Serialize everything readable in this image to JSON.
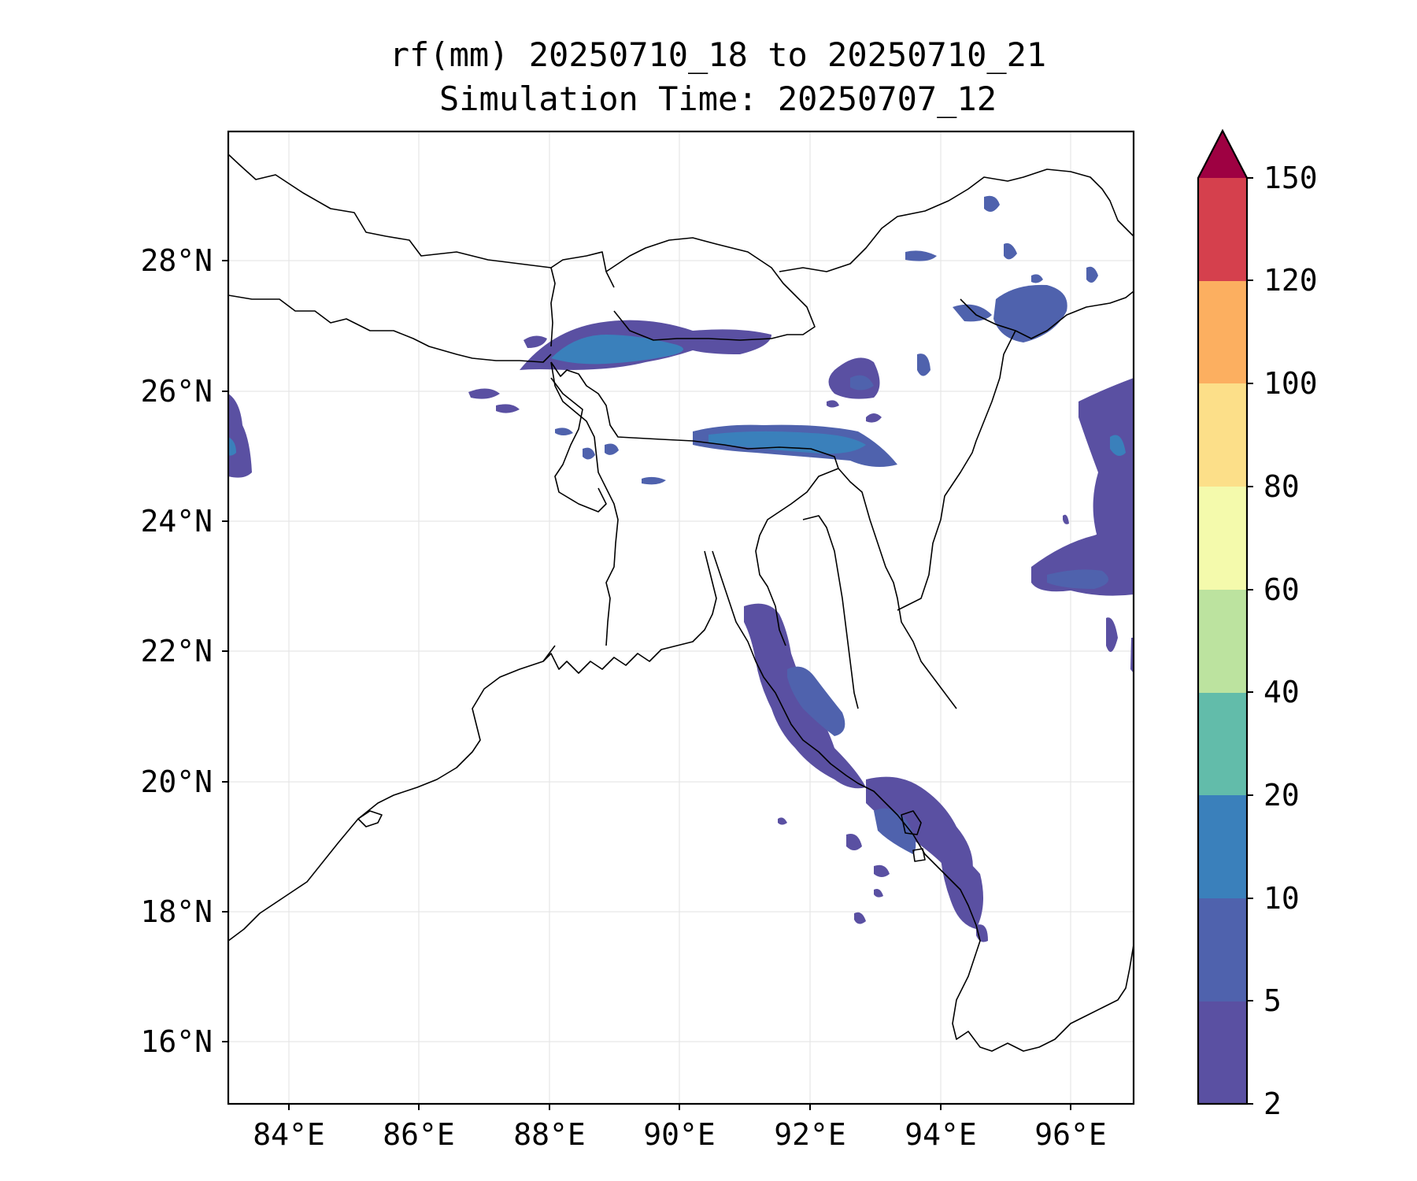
{
  "map": {
    "title_line1": "rf(mm) 20250710_18 to 20250710_21",
    "title_line2": "Simulation Time: 20250707_12",
    "lon_range": [
      83.1,
      97.0
    ],
    "lat_range": [
      15.0,
      30.0
    ],
    "lon_ticks": [
      "84°E",
      "86°E",
      "88°E",
      "90°E",
      "92°E",
      "94°E",
      "96°E"
    ],
    "lat_ticks": [
      "16°N",
      "18°N",
      "20°N",
      "22°N",
      "24°N",
      "26°N",
      "28°N"
    ],
    "grid": true,
    "background_color": "#ffffff",
    "boundary_color": "#000000"
  },
  "colorbar": {
    "labels": [
      "2",
      "5",
      "10",
      "20",
      "40",
      "60",
      "80",
      "100",
      "120",
      "150"
    ],
    "colors": [
      "#5a50a2",
      "#4f62ad",
      "#3a80bb",
      "#62bcaa",
      "#bce39f",
      "#f4faac",
      "#fcdf89",
      "#fcaf60",
      "#f0724a",
      "#d5404d"
    ],
    "extend_color": "#9e0142",
    "extend": "max",
    "unit": "mm"
  }
}
